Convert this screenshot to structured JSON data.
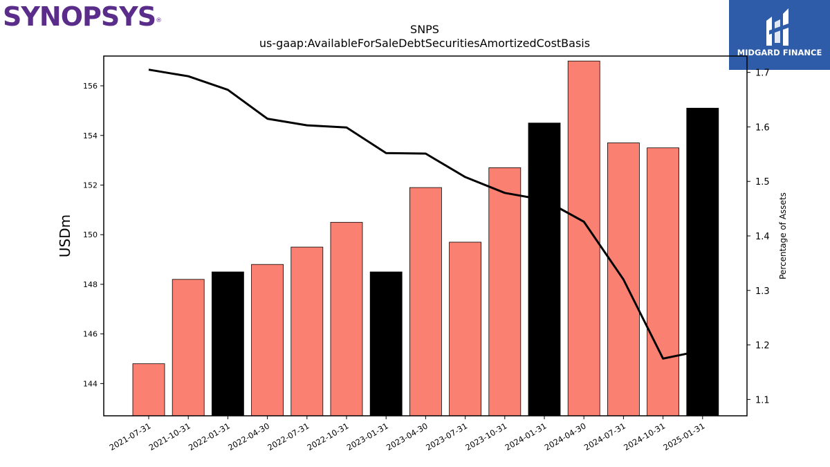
{
  "logos": {
    "left": "SYNOPSYS",
    "left_mark": "®",
    "right": "MIDGARD FINANCE"
  },
  "colors": {
    "bar_primary": "#fa8072",
    "bar_highlight": "#000000",
    "line": "#000000",
    "logo_left": "#5a2d8a",
    "logo_right_bg": "#2f5ca8"
  },
  "chart_data": {
    "type": "bar",
    "title": "SNPS",
    "subtitle": "us-gaap:AvailableForSaleDebtSecuritiesAmortizedCostBasis",
    "ylabel": "USDm",
    "y2label": "Percentage of Assets",
    "categories": [
      "2021-07-31",
      "2021-10-31",
      "2022-01-31",
      "2022-04-30",
      "2022-07-31",
      "2022-10-31",
      "2023-01-31",
      "2023-04-30",
      "2023-07-31",
      "2023-10-31",
      "2024-01-31",
      "2024-04-30",
      "2024-07-31",
      "2024-10-31",
      "2025-01-31"
    ],
    "series": [
      {
        "type": "bar",
        "axis": "left",
        "values": [
          144.8,
          148.2,
          148.5,
          148.8,
          149.5,
          150.5,
          148.5,
          151.9,
          149.7,
          152.7,
          154.5,
          157.0,
          153.7,
          153.5,
          155.1
        ],
        "highlight": [
          false,
          false,
          true,
          false,
          false,
          false,
          true,
          false,
          false,
          false,
          true,
          false,
          false,
          false,
          true
        ]
      },
      {
        "type": "line",
        "axis": "right",
        "values": [
          1.705,
          1.693,
          1.668,
          1.615,
          1.603,
          1.599,
          1.552,
          1.551,
          1.508,
          1.479,
          1.466,
          1.426,
          1.32,
          1.175,
          1.19
        ]
      }
    ],
    "ylim": [
      142.7,
      157.2
    ],
    "yticks": [
      144,
      146,
      148,
      150,
      152,
      154,
      156
    ],
    "y2lim": [
      1.07,
      1.73
    ],
    "y2ticks": [
      1.1,
      1.2,
      1.3,
      1.4,
      1.5,
      1.6,
      1.7
    ],
    "grid": false
  }
}
